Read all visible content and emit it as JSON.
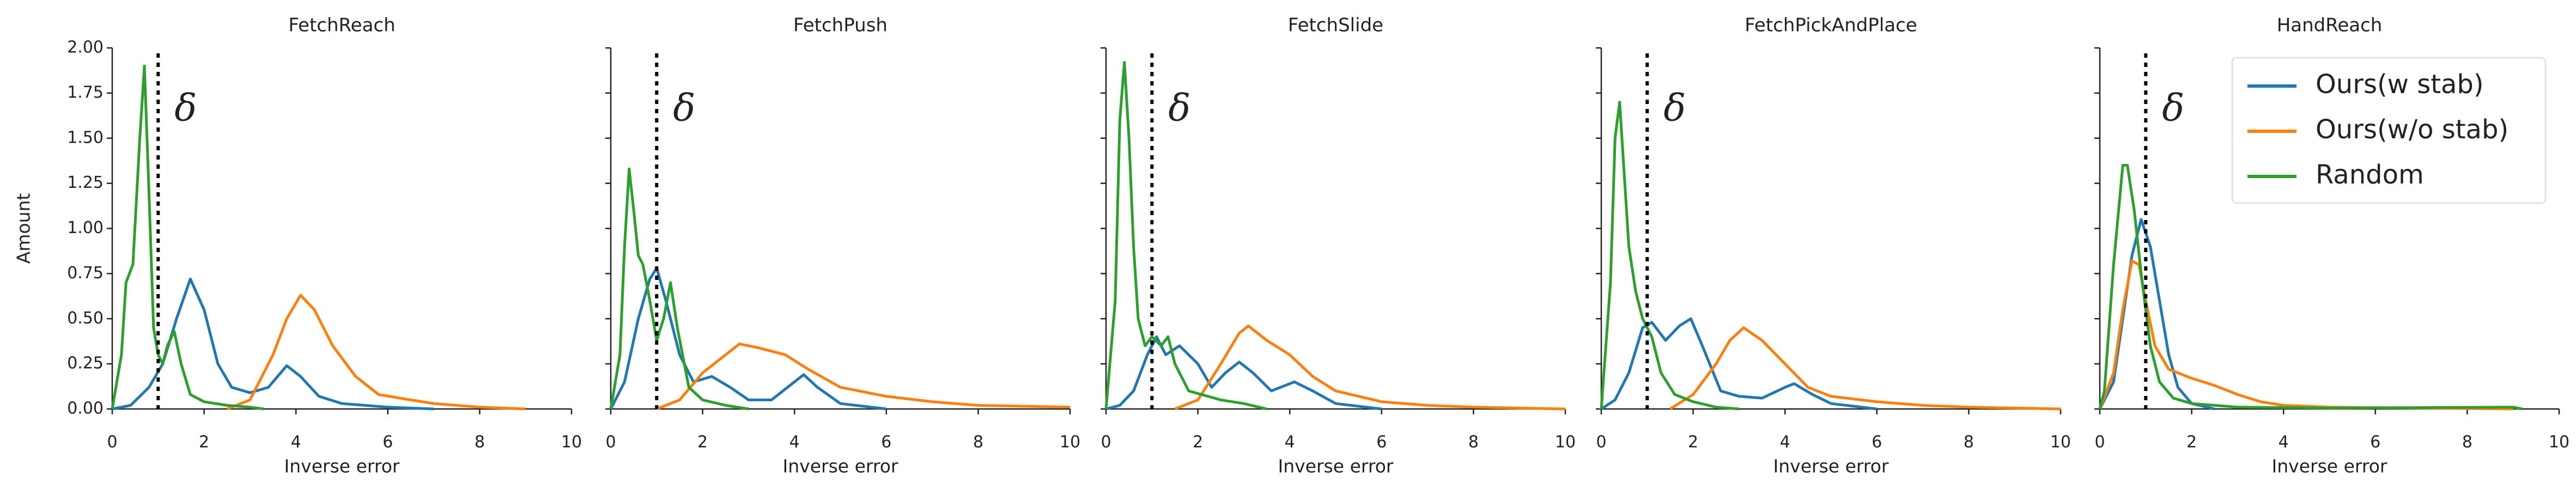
{
  "chart_data": [
    {
      "type": "line",
      "title": "FetchReach",
      "xlabel": "Inverse error",
      "ylabel": "Amount",
      "xlim": [
        0,
        10
      ],
      "ylim": [
        0,
        2
      ],
      "xticks": [
        0,
        2,
        4,
        6,
        8,
        10
      ],
      "yticks": [
        {
          "value": 0,
          "label": "0.00"
        },
        {
          "value": 0.25,
          "label": "0.25"
        },
        {
          "value": 0.5,
          "label": "0.50"
        },
        {
          "value": 0.75,
          "label": "0.75"
        },
        {
          "value": 1,
          "label": "1.00"
        },
        {
          "value": 1.25,
          "label": "1.25"
        },
        {
          "value": 1.5,
          "label": "1.50"
        },
        {
          "value": 1.75,
          "label": "1.75"
        },
        {
          "value": 2,
          "label": "2.00"
        }
      ],
      "threshold": 1,
      "threshold_label": "δ",
      "series": [
        {
          "color": "#1f77b4",
          "x": [
            0,
            0.4,
            0.8,
            1.1,
            1.4,
            1.7,
            2,
            2.3,
            2.6,
            3,
            3.4,
            3.8,
            4.1,
            4.5,
            5,
            6,
            7
          ],
          "values": [
            0,
            0.02,
            0.12,
            0.25,
            0.5,
            0.72,
            0.55,
            0.25,
            0.12,
            0.09,
            0.12,
            0.24,
            0.18,
            0.07,
            0.03,
            0.01,
            0
          ]
        },
        {
          "color": "#ff7f0e",
          "x": [
            2.5,
            3,
            3.5,
            3.8,
            4.1,
            4.4,
            4.8,
            5.3,
            5.8,
            6.5,
            7,
            8,
            9
          ],
          "values": [
            0,
            0.05,
            0.3,
            0.5,
            0.63,
            0.55,
            0.35,
            0.18,
            0.08,
            0.05,
            0.03,
            0.01,
            0
          ]
        },
        {
          "color": "#2ca02c",
          "x": [
            0,
            0.2,
            0.3,
            0.45,
            0.6,
            0.7,
            0.8,
            0.9,
            1,
            1.1,
            1.2,
            1.35,
            1.5,
            1.7,
            2,
            2.5,
            3,
            3.3
          ],
          "values": [
            0,
            0.3,
            0.7,
            0.8,
            1.5,
            1.9,
            1.2,
            0.45,
            0.3,
            0.25,
            0.35,
            0.43,
            0.25,
            0.08,
            0.04,
            0.02,
            0.01,
            0
          ]
        }
      ]
    },
    {
      "type": "line",
      "title": "FetchPush",
      "xlabel": "Inverse error",
      "xlim": [
        0,
        10
      ],
      "ylim": [
        0,
        2
      ],
      "xticks": [
        0,
        2,
        4,
        6,
        8,
        10
      ],
      "yticks": [
        0,
        0.25,
        0.5,
        0.75,
        1,
        1.25,
        1.5,
        1.75,
        2
      ],
      "ytick_labels": false,
      "threshold": 1,
      "threshold_label": "δ",
      "series": [
        {
          "color": "#1f77b4",
          "x": [
            0,
            0.3,
            0.6,
            0.85,
            1,
            1.2,
            1.5,
            1.8,
            2.2,
            2.6,
            3,
            3.5,
            4,
            4.2,
            4.5,
            5,
            6
          ],
          "values": [
            0,
            0.15,
            0.5,
            0.72,
            0.78,
            0.6,
            0.3,
            0.15,
            0.18,
            0.12,
            0.05,
            0.05,
            0.15,
            0.19,
            0.12,
            0.03,
            0
          ]
        },
        {
          "color": "#ff7f0e",
          "x": [
            1,
            1.5,
            2,
            2.5,
            2.8,
            3.2,
            3.8,
            4.3,
            5,
            6,
            7,
            8,
            10
          ],
          "values": [
            0,
            0.05,
            0.2,
            0.3,
            0.36,
            0.34,
            0.3,
            0.22,
            0.12,
            0.07,
            0.04,
            0.02,
            0.01
          ]
        },
        {
          "color": "#2ca02c",
          "x": [
            0,
            0.2,
            0.3,
            0.4,
            0.5,
            0.6,
            0.7,
            0.85,
            1,
            1.15,
            1.3,
            1.45,
            1.7,
            2,
            2.5,
            3
          ],
          "values": [
            0,
            0.3,
            0.9,
            1.33,
            1.1,
            0.85,
            0.8,
            0.6,
            0.38,
            0.5,
            0.7,
            0.45,
            0.12,
            0.05,
            0.02,
            0
          ]
        }
      ]
    },
    {
      "type": "line",
      "title": "FetchSlide",
      "xlabel": "Inverse error",
      "xlim": [
        0,
        10
      ],
      "ylim": [
        0,
        2
      ],
      "xticks": [
        0,
        2,
        4,
        6,
        8,
        10
      ],
      "yticks": [
        0,
        0.25,
        0.5,
        0.75,
        1,
        1.25,
        1.5,
        1.75,
        2
      ],
      "ytick_labels": false,
      "threshold": 1,
      "threshold_label": "δ",
      "series": [
        {
          "color": "#1f77b4",
          "x": [
            0,
            0.3,
            0.6,
            0.9,
            1.1,
            1.3,
            1.6,
            2,
            2.3,
            2.6,
            2.9,
            3.2,
            3.6,
            4.1,
            4.5,
            5,
            6
          ],
          "values": [
            0,
            0.02,
            0.1,
            0.3,
            0.4,
            0.3,
            0.35,
            0.25,
            0.12,
            0.2,
            0.26,
            0.2,
            0.1,
            0.15,
            0.1,
            0.03,
            0
          ]
        },
        {
          "color": "#ff7f0e",
          "x": [
            1.5,
            2,
            2.5,
            2.9,
            3.1,
            3.5,
            4,
            4.5,
            5,
            6,
            7,
            8,
            10
          ],
          "values": [
            0,
            0.05,
            0.25,
            0.42,
            0.46,
            0.38,
            0.3,
            0.18,
            0.1,
            0.04,
            0.02,
            0.01,
            0
          ]
        },
        {
          "color": "#2ca02c",
          "x": [
            0,
            0.2,
            0.3,
            0.4,
            0.5,
            0.6,
            0.7,
            0.85,
            1,
            1.2,
            1.35,
            1.5,
            1.8,
            2.5,
            3,
            3.5
          ],
          "values": [
            0,
            0.6,
            1.6,
            1.92,
            1.5,
            0.9,
            0.5,
            0.35,
            0.4,
            0.35,
            0.4,
            0.25,
            0.1,
            0.05,
            0.03,
            0
          ]
        }
      ]
    },
    {
      "type": "line",
      "title": "FetchPickAndPlace",
      "xlabel": "Inverse error",
      "xlim": [
        0,
        10
      ],
      "ylim": [
        0,
        2
      ],
      "xticks": [
        0,
        2,
        4,
        6,
        8,
        10
      ],
      "yticks": [
        0,
        0.25,
        0.5,
        0.75,
        1,
        1.25,
        1.5,
        1.75,
        2
      ],
      "ytick_labels": false,
      "threshold": 1,
      "threshold_label": "δ",
      "series": [
        {
          "color": "#1f77b4",
          "x": [
            0,
            0.3,
            0.6,
            0.9,
            1.1,
            1.4,
            1.7,
            1.95,
            2.2,
            2.6,
            3,
            3.5,
            4,
            4.2,
            4.6,
            5,
            6
          ],
          "values": [
            0,
            0.05,
            0.2,
            0.45,
            0.48,
            0.38,
            0.46,
            0.5,
            0.35,
            0.1,
            0.07,
            0.06,
            0.12,
            0.14,
            0.08,
            0.03,
            0
          ]
        },
        {
          "color": "#ff7f0e",
          "x": [
            1.5,
            2,
            2.5,
            2.8,
            3.1,
            3.5,
            4,
            4.5,
            5,
            6,
            7,
            8,
            10
          ],
          "values": [
            0,
            0.08,
            0.25,
            0.38,
            0.45,
            0.38,
            0.25,
            0.12,
            0.07,
            0.04,
            0.02,
            0.01,
            0
          ]
        },
        {
          "color": "#2ca02c",
          "x": [
            0,
            0.2,
            0.3,
            0.4,
            0.5,
            0.6,
            0.75,
            0.9,
            1.1,
            1.3,
            1.6,
            2,
            2.5,
            3
          ],
          "values": [
            0,
            0.7,
            1.5,
            1.7,
            1.3,
            0.9,
            0.65,
            0.5,
            0.4,
            0.2,
            0.08,
            0.04,
            0.01,
            0
          ]
        }
      ]
    },
    {
      "type": "line",
      "title": "HandReach",
      "xlabel": "Inverse error",
      "xlim": [
        0,
        10
      ],
      "ylim": [
        0,
        2
      ],
      "xticks": [
        0,
        2,
        4,
        6,
        8,
        10
      ],
      "yticks": [
        0,
        0.25,
        0.5,
        0.75,
        1,
        1.25,
        1.5,
        1.75,
        2
      ],
      "ytick_labels": false,
      "threshold": 1,
      "threshold_label": "δ",
      "legend": "upper right",
      "series": [
        {
          "name": "Ours(w stab)",
          "color": "#1f77b4",
          "x": [
            0,
            0.3,
            0.5,
            0.7,
            0.9,
            1.1,
            1.3,
            1.5,
            1.7,
            2,
            2.5
          ],
          "values": [
            0,
            0.15,
            0.5,
            0.85,
            1.05,
            0.9,
            0.6,
            0.3,
            0.12,
            0.03,
            0
          ]
        },
        {
          "name": "Ours(w/o stab)",
          "color": "#ff7f0e",
          "x": [
            0,
            0.3,
            0.5,
            0.7,
            0.85,
            1,
            1.2,
            1.5,
            2,
            2.5,
            3,
            3.5,
            4,
            5,
            7,
            9
          ],
          "values": [
            0,
            0.2,
            0.55,
            0.82,
            0.8,
            0.6,
            0.35,
            0.22,
            0.17,
            0.13,
            0.08,
            0.04,
            0.02,
            0.01,
            0.005,
            0
          ]
        },
        {
          "name": "Random",
          "color": "#2ca02c",
          "x": [
            0,
            0.1,
            0.3,
            0.5,
            0.6,
            0.75,
            0.9,
            1.1,
            1.3,
            1.6,
            2,
            3,
            5,
            9,
            9.2
          ],
          "values": [
            0,
            0.1,
            0.8,
            1.35,
            1.35,
            1.1,
            0.75,
            0.35,
            0.15,
            0.06,
            0.03,
            0.01,
            0.005,
            0.01,
            0
          ]
        }
      ]
    }
  ]
}
